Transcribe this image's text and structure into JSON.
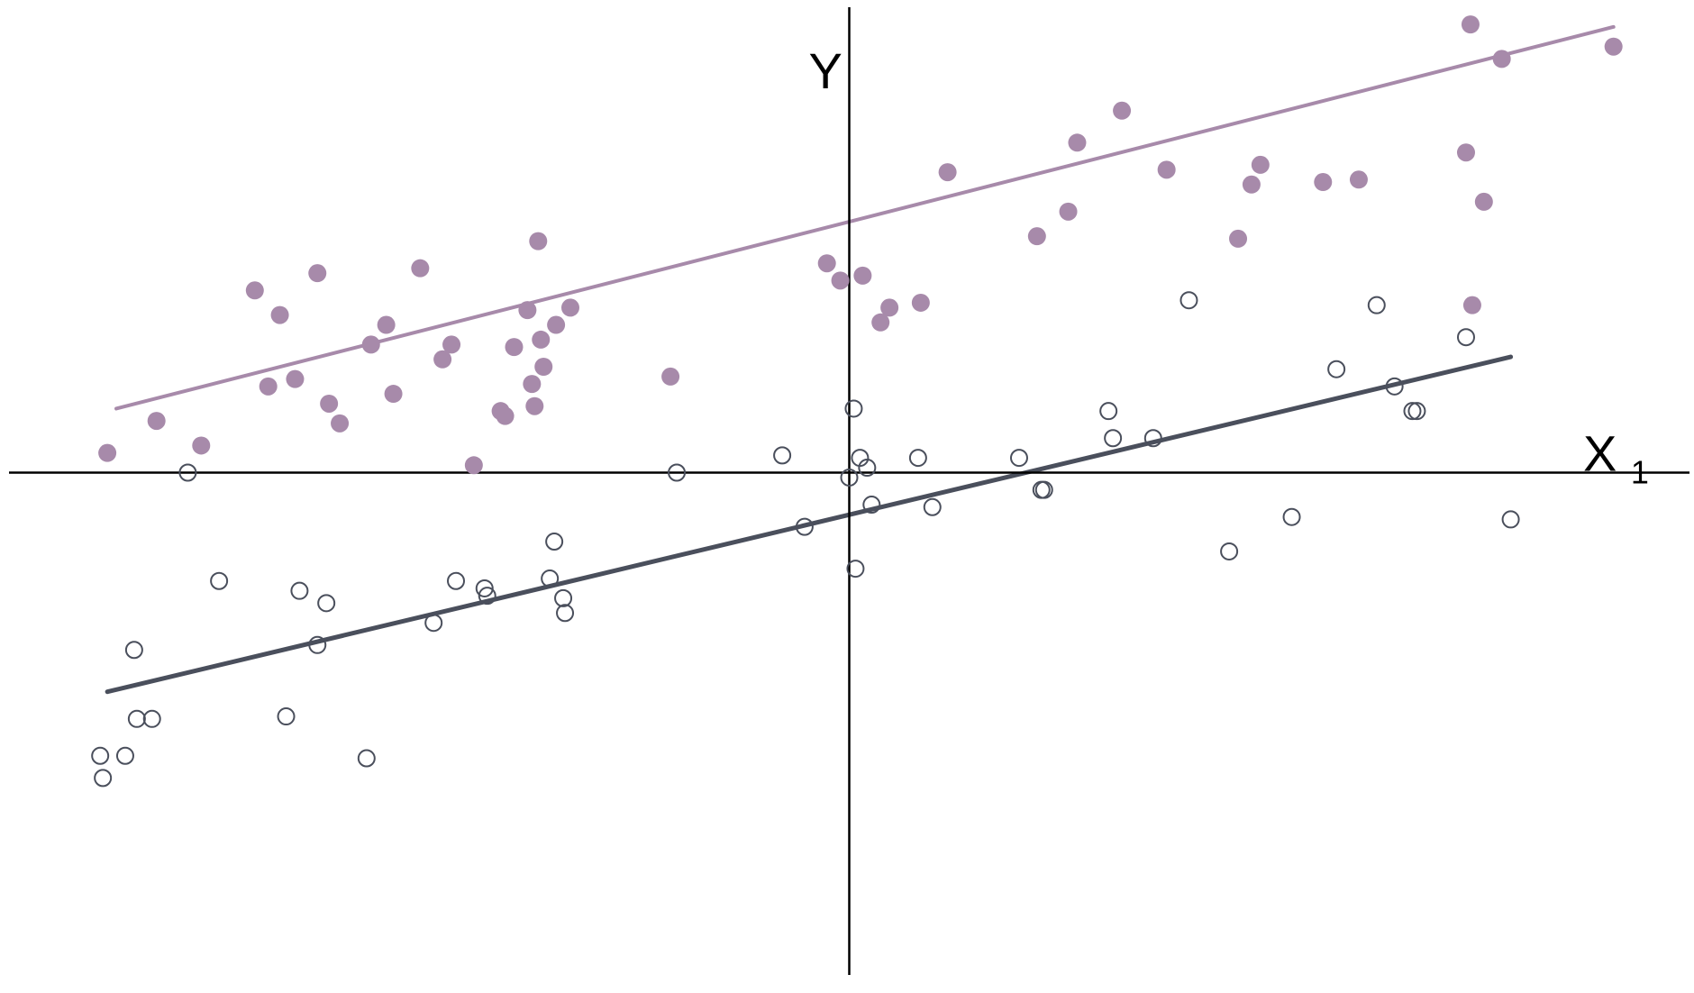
{
  "chart_data": {
    "type": "scatter",
    "title": "",
    "xlabel": "X",
    "xlabel_subscript": "1",
    "ylabel": "Y",
    "xlim": [
      -9.4,
      9.4
    ],
    "ylim": [
      -10.2,
      9.45
    ],
    "grid": false,
    "legend": "none",
    "series": [
      {
        "marker": "filled-circle",
        "color": "#a78aaa",
        "points": [
          [
            -8.3,
            0.4
          ],
          [
            -7.75,
            1.05
          ],
          [
            -7.25,
            0.55
          ],
          [
            -6.65,
            3.7
          ],
          [
            -6.5,
            1.75
          ],
          [
            -6.37,
            3.2
          ],
          [
            -6.2,
            1.9
          ],
          [
            -5.95,
            4.05
          ],
          [
            -5.82,
            1.4
          ],
          [
            -5.7,
            1.0
          ],
          [
            -5.35,
            2.6
          ],
          [
            -5.18,
            3.0
          ],
          [
            -5.1,
            1.6
          ],
          [
            -4.8,
            4.15
          ],
          [
            -4.55,
            2.3
          ],
          [
            -4.45,
            2.6
          ],
          [
            -4.2,
            0.15
          ],
          [
            -3.9,
            1.25
          ],
          [
            -3.85,
            1.15
          ],
          [
            -3.75,
            2.55
          ],
          [
            -3.6,
            3.3
          ],
          [
            -3.55,
            1.8
          ],
          [
            -3.52,
            1.35
          ],
          [
            -3.48,
            4.7
          ],
          [
            -3.45,
            2.7
          ],
          [
            -3.42,
            2.15
          ],
          [
            -3.28,
            3.0
          ],
          [
            -3.12,
            3.35
          ],
          [
            -2.0,
            1.95
          ],
          [
            -0.25,
            4.25
          ],
          [
            -0.1,
            3.9
          ],
          [
            0.15,
            4.0
          ],
          [
            0.35,
            3.05
          ],
          [
            0.45,
            3.35
          ],
          [
            0.8,
            3.45
          ],
          [
            1.1,
            6.1
          ],
          [
            2.1,
            4.8
          ],
          [
            2.45,
            5.3
          ],
          [
            2.55,
            6.7
          ],
          [
            3.05,
            7.35
          ],
          [
            3.55,
            6.15
          ],
          [
            4.35,
            4.75
          ],
          [
            4.5,
            5.85
          ],
          [
            4.6,
            6.25
          ],
          [
            5.3,
            5.9
          ],
          [
            5.7,
            5.95
          ],
          [
            6.9,
            6.5
          ],
          [
            6.95,
            9.1
          ],
          [
            6.97,
            3.4
          ],
          [
            7.1,
            5.5
          ],
          [
            7.3,
            8.4
          ],
          [
            8.55,
            8.65
          ]
        ]
      },
      {
        "marker": "hollow-circle",
        "color": "#4a4f5c",
        "points": [
          [
            -8.38,
            -5.75
          ],
          [
            -8.35,
            -6.2
          ],
          [
            -8.1,
            -5.75
          ],
          [
            -8.0,
            -3.6
          ],
          [
            -7.97,
            -5.0
          ],
          [
            -7.8,
            -5.0
          ],
          [
            -7.4,
            0.0
          ],
          [
            -7.05,
            -2.2
          ],
          [
            -6.3,
            -4.95
          ],
          [
            -6.15,
            -2.4
          ],
          [
            -5.95,
            -3.5
          ],
          [
            -5.85,
            -2.65
          ],
          [
            -5.4,
            -5.8
          ],
          [
            -4.65,
            -3.05
          ],
          [
            -4.4,
            -2.2
          ],
          [
            -4.08,
            -2.35
          ],
          [
            -4.05,
            -2.5
          ],
          [
            -3.35,
            -2.15
          ],
          [
            -3.3,
            -1.4
          ],
          [
            -3.2,
            -2.55
          ],
          [
            -3.18,
            -2.85
          ],
          [
            -1.93,
            0.0
          ],
          [
            -0.75,
            0.35
          ],
          [
            -0.5,
            -1.1
          ],
          [
            0.0,
            -0.1
          ],
          [
            0.05,
            1.3
          ],
          [
            0.07,
            -1.95
          ],
          [
            0.12,
            0.3
          ],
          [
            0.2,
            0.1
          ],
          [
            0.25,
            -0.65
          ],
          [
            0.77,
            0.3
          ],
          [
            0.93,
            -0.7
          ],
          [
            1.9,
            0.3
          ],
          [
            2.15,
            -0.35
          ],
          [
            2.18,
            -0.35
          ],
          [
            2.9,
            1.25
          ],
          [
            2.95,
            0.7
          ],
          [
            3.4,
            0.7
          ],
          [
            3.8,
            3.5
          ],
          [
            4.25,
            -1.6
          ],
          [
            4.95,
            -0.9
          ],
          [
            5.45,
            2.1
          ],
          [
            5.9,
            3.4
          ],
          [
            6.1,
            1.75
          ],
          [
            6.3,
            1.25
          ],
          [
            6.35,
            1.25
          ],
          [
            6.9,
            2.75
          ],
          [
            7.4,
            -0.95
          ]
        ]
      }
    ],
    "trendlines": [
      {
        "series": 0,
        "x": [
          -8.2,
          8.55
        ],
        "y": [
          1.3,
          9.05
        ],
        "color": "#a78aaa"
      },
      {
        "series": 1,
        "x": [
          -8.3,
          7.4
        ],
        "y": [
          -4.45,
          2.35
        ],
        "color": "#4a4f5c"
      }
    ]
  }
}
